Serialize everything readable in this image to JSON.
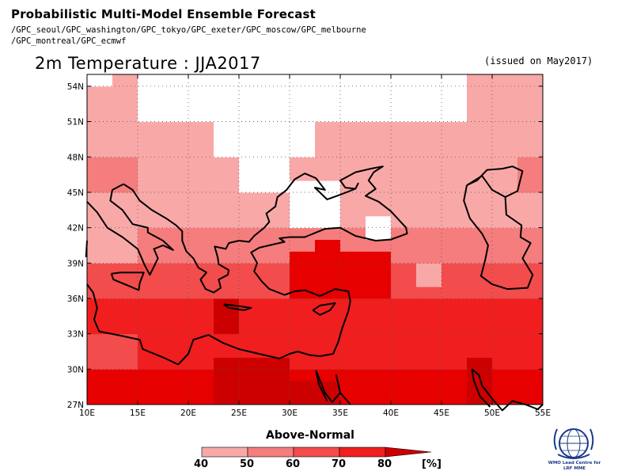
{
  "header": {
    "title": "Probabilistic Multi-Model Ensemble Forecast",
    "gpc_line1": "/GPC_seoul/GPC_washington/GPC_tokyo/GPC_exeter/GPC_moscow/GPC_melbourne",
    "gpc_line2": "/GPC_montreal/GPC_ecmwf"
  },
  "map": {
    "title": "2m Temperature : JJA2017",
    "issued": "(issued on May2017)",
    "x_ticks": [
      "10E",
      "15E",
      "20E",
      "25E",
      "30E",
      "35E",
      "40E",
      "45E",
      "50E",
      "55E"
    ],
    "y_ticks": [
      "54N",
      "51N",
      "48N",
      "45N",
      "42N",
      "39N",
      "36N",
      "33N",
      "30N",
      "27N"
    ],
    "lon_range": [
      10,
      55
    ],
    "lat_range": [
      27,
      55
    ],
    "grid_lines": "dotted",
    "colors": {
      "c40": "#f9a8a8",
      "c50": "#f57d7d",
      "c60": "#f24c4c",
      "c70": "#f01e1e",
      "c80": "#e60000",
      "c90": "#cc0000",
      "coast": "#000000"
    }
  },
  "legend": {
    "title": "Above-Normal",
    "labels": [
      "40",
      "50",
      "60",
      "70",
      "80"
    ],
    "unit": "[%]",
    "colors": [
      "#f9a8a8",
      "#f57d7d",
      "#f24c4c",
      "#f01e1e",
      "#e60000",
      "#cc0000"
    ]
  },
  "logo": {
    "text_line1": "WMO Lead Centre for",
    "text_line2": "LRF MME"
  }
}
